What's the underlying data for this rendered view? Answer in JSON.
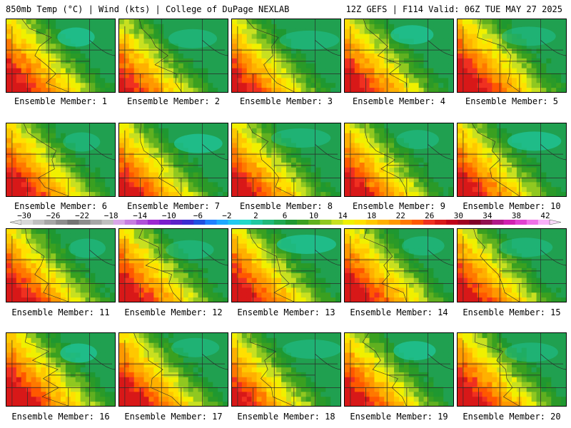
{
  "header": {
    "title_left": "850mb Temp (°C) | Wind (kts) | College of DuPage NEXLAB",
    "title_right": "12Z GEFS | F114 Valid: 06Z TUE MAY 27 2025"
  },
  "caption_prefix": "Ensemble Member: ",
  "members": [
    {
      "id": 1,
      "label": "Ensemble Member: 1"
    },
    {
      "id": 2,
      "label": "Ensemble Member: 2"
    },
    {
      "id": 3,
      "label": "Ensemble Member: 3"
    },
    {
      "id": 4,
      "label": "Ensemble Member: 4"
    },
    {
      "id": 5,
      "label": "Ensemble Member: 5"
    },
    {
      "id": 6,
      "label": "Ensemble Member: 6"
    },
    {
      "id": 7,
      "label": "Ensemble Member: 7"
    },
    {
      "id": 8,
      "label": "Ensemble Member: 8"
    },
    {
      "id": 9,
      "label": "Ensemble Member: 9"
    },
    {
      "id": 10,
      "label": "Ensemble Member: 10"
    },
    {
      "id": 11,
      "label": "Ensemble Member: 11"
    },
    {
      "id": 12,
      "label": "Ensemble Member: 12"
    },
    {
      "id": 13,
      "label": "Ensemble Member: 13"
    },
    {
      "id": 14,
      "label": "Ensemble Member: 14"
    },
    {
      "id": 15,
      "label": "Ensemble Member: 15"
    },
    {
      "id": 16,
      "label": "Ensemble Member: 16"
    },
    {
      "id": 17,
      "label": "Ensemble Member: 17"
    },
    {
      "id": 18,
      "label": "Ensemble Member: 18"
    },
    {
      "id": 19,
      "label": "Ensemble Member: 19"
    },
    {
      "id": 20,
      "label": "Ensemble Member: 20"
    }
  ],
  "colorbar": {
    "tick_labels": [
      "-30",
      "-26",
      "-22",
      "-18",
      "-14",
      "-10",
      "-6",
      "-2",
      "2",
      "6",
      "10",
      "14",
      "18",
      "22",
      "26",
      "30",
      "34",
      "38",
      "42"
    ],
    "colors": [
      "#d8d8d8",
      "#bfbfbf",
      "#a6a6a6",
      "#8c8c8c",
      "#737373",
      "#8c8c8c",
      "#a6a6a6",
      "#bfbfbf",
      "#d9a6e8",
      "#c77de0",
      "#b050d8",
      "#9c28d0",
      "#7b1ccc",
      "#5c20c8",
      "#3c2cd0",
      "#2050e0",
      "#1f80ff",
      "#1ea8ff",
      "#20c8f0",
      "#20d8c8",
      "#20c8a0",
      "#1fb878",
      "#20a850",
      "#1f9830",
      "#3aa020",
      "#60b020",
      "#90c820",
      "#c8e020",
      "#f0f000",
      "#ffe000",
      "#ffc800",
      "#ffb000",
      "#ff9800",
      "#ff7800",
      "#ff5800",
      "#f03020",
      "#d81818",
      "#c00018",
      "#a00020",
      "#800028",
      "#901050",
      "#b01888",
      "#d020b0",
      "#e040d0",
      "#f070e8",
      "#f8b0f8"
    ]
  }
}
